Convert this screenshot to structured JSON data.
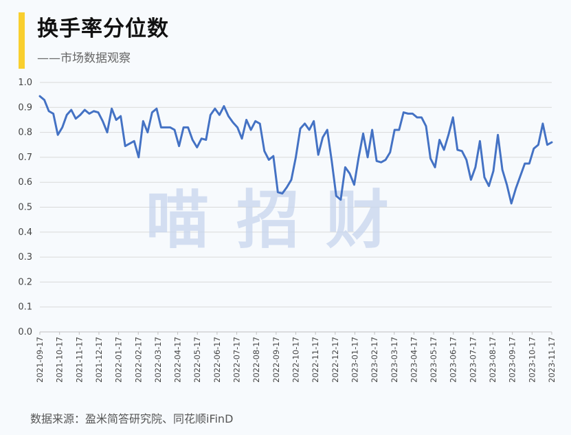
{
  "header": {
    "title": "换手率分位数",
    "subtitle": "——市场数据观察",
    "accent_color": "#f9cf2e"
  },
  "footer": {
    "source": "数据来源：盈米简答研究院、同花顺iFinD"
  },
  "watermark": {
    "chars": [
      "喵",
      "招",
      "财"
    ]
  },
  "chart_data": {
    "type": "line",
    "title": "换手率分位数",
    "xlabel": "",
    "ylabel": "",
    "ylim": [
      0,
      1.0
    ],
    "yticks": [
      "1.0",
      "0.9",
      "0.8",
      "0.7",
      "0.6",
      "0.5",
      "0.4",
      "0.3",
      "0.2",
      "0.1",
      "0.0"
    ],
    "grid": true,
    "legend": "none",
    "line_color": "#4472c4",
    "x_tick_labels": [
      "2021-09-17",
      "2021-10-17",
      "2021-11-17",
      "2021-12-17",
      "2022-01-17",
      "2022-02-17",
      "2022-03-17",
      "2022-04-17",
      "2022-05-17",
      "2022-06-17",
      "2022-07-17",
      "2022-08-17",
      "2022-09-17",
      "2022-10-17",
      "2022-11-17",
      "2022-12-17",
      "2023-01-17",
      "2023-02-17",
      "2023-03-17",
      "2023-04-17",
      "2023-05-17",
      "2023-06-17",
      "2023-07-17",
      "2023-08-17",
      "2023-09-17",
      "2023-10-17",
      "2023-11-17"
    ],
    "series": [
      {
        "name": "",
        "values": [
          0.945,
          0.93,
          0.885,
          0.875,
          0.79,
          0.82,
          0.87,
          0.89,
          0.855,
          0.87,
          0.89,
          0.875,
          0.885,
          0.88,
          0.845,
          0.8,
          0.895,
          0.85,
          0.865,
          0.745,
          0.755,
          0.765,
          0.7,
          0.845,
          0.8,
          0.88,
          0.895,
          0.82,
          0.82,
          0.82,
          0.81,
          0.745,
          0.82,
          0.82,
          0.77,
          0.74,
          0.775,
          0.77,
          0.87,
          0.895,
          0.87,
          0.905,
          0.865,
          0.84,
          0.82,
          0.775,
          0.85,
          0.81,
          0.845,
          0.835,
          0.725,
          0.69,
          0.705,
          0.56,
          0.555,
          0.58,
          0.61,
          0.7,
          0.815,
          0.835,
          0.81,
          0.845,
          0.71,
          0.78,
          0.81,
          0.685,
          0.545,
          0.53,
          0.66,
          0.635,
          0.59,
          0.7,
          0.795,
          0.7,
          0.81,
          0.685,
          0.68,
          0.69,
          0.72,
          0.81,
          0.81,
          0.88,
          0.875,
          0.875,
          0.86,
          0.86,
          0.825,
          0.695,
          0.66,
          0.77,
          0.73,
          0.79,
          0.86,
          0.73,
          0.725,
          0.69,
          0.61,
          0.66,
          0.765,
          0.62,
          0.585,
          0.645,
          0.79,
          0.65,
          0.59,
          0.515,
          0.575,
          0.625,
          0.675,
          0.675,
          0.735,
          0.75,
          0.835,
          0.75,
          0.76
        ]
      }
    ]
  }
}
